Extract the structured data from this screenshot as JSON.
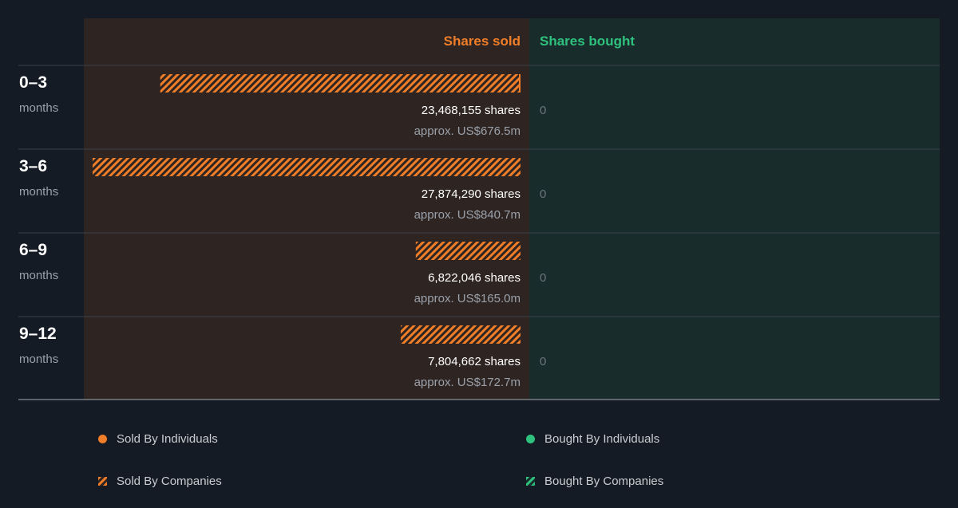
{
  "chart_data": {
    "type": "bar",
    "headers": {
      "sold": "Shares sold",
      "bought": "Shares bought"
    },
    "categories": [
      {
        "period": "0–3",
        "unit": "months"
      },
      {
        "period": "3–6",
        "unit": "months"
      },
      {
        "period": "6–9",
        "unit": "months"
      },
      {
        "period": "9–12",
        "unit": "months"
      }
    ],
    "sold": {
      "values": [
        23468155,
        27874290,
        6822046,
        7804662
      ],
      "shares_labels": [
        "23,468,155 shares",
        "27,874,290 shares",
        "6,822,046 shares",
        "7,804,662 shares"
      ],
      "value_labels": [
        "approx. US$676.5m",
        "approx. US$840.7m",
        "approx. US$165.0m",
        "approx. US$172.7m"
      ]
    },
    "bought": {
      "values": [
        0,
        0,
        0,
        0
      ],
      "labels": [
        "0",
        "0",
        "0",
        "0"
      ]
    },
    "xlim": [
      0,
      27874290
    ],
    "legend": [
      {
        "label": "Sold By Individuals",
        "marker": "dot",
        "color": "#f07e28"
      },
      {
        "label": "Sold By Companies",
        "marker": "stripe",
        "color": "#f07e28"
      },
      {
        "label": "Bought By Individuals",
        "marker": "dot",
        "color": "#2ec27e"
      },
      {
        "label": "Bought By Companies",
        "marker": "stripe",
        "color": "#2ec27e"
      }
    ],
    "colors": {
      "background": "#151b24",
      "sold_panel": "#2e2422",
      "bought_panel": "#182c2b",
      "sold": "#f07e28",
      "bought": "#2ec27e"
    }
  }
}
